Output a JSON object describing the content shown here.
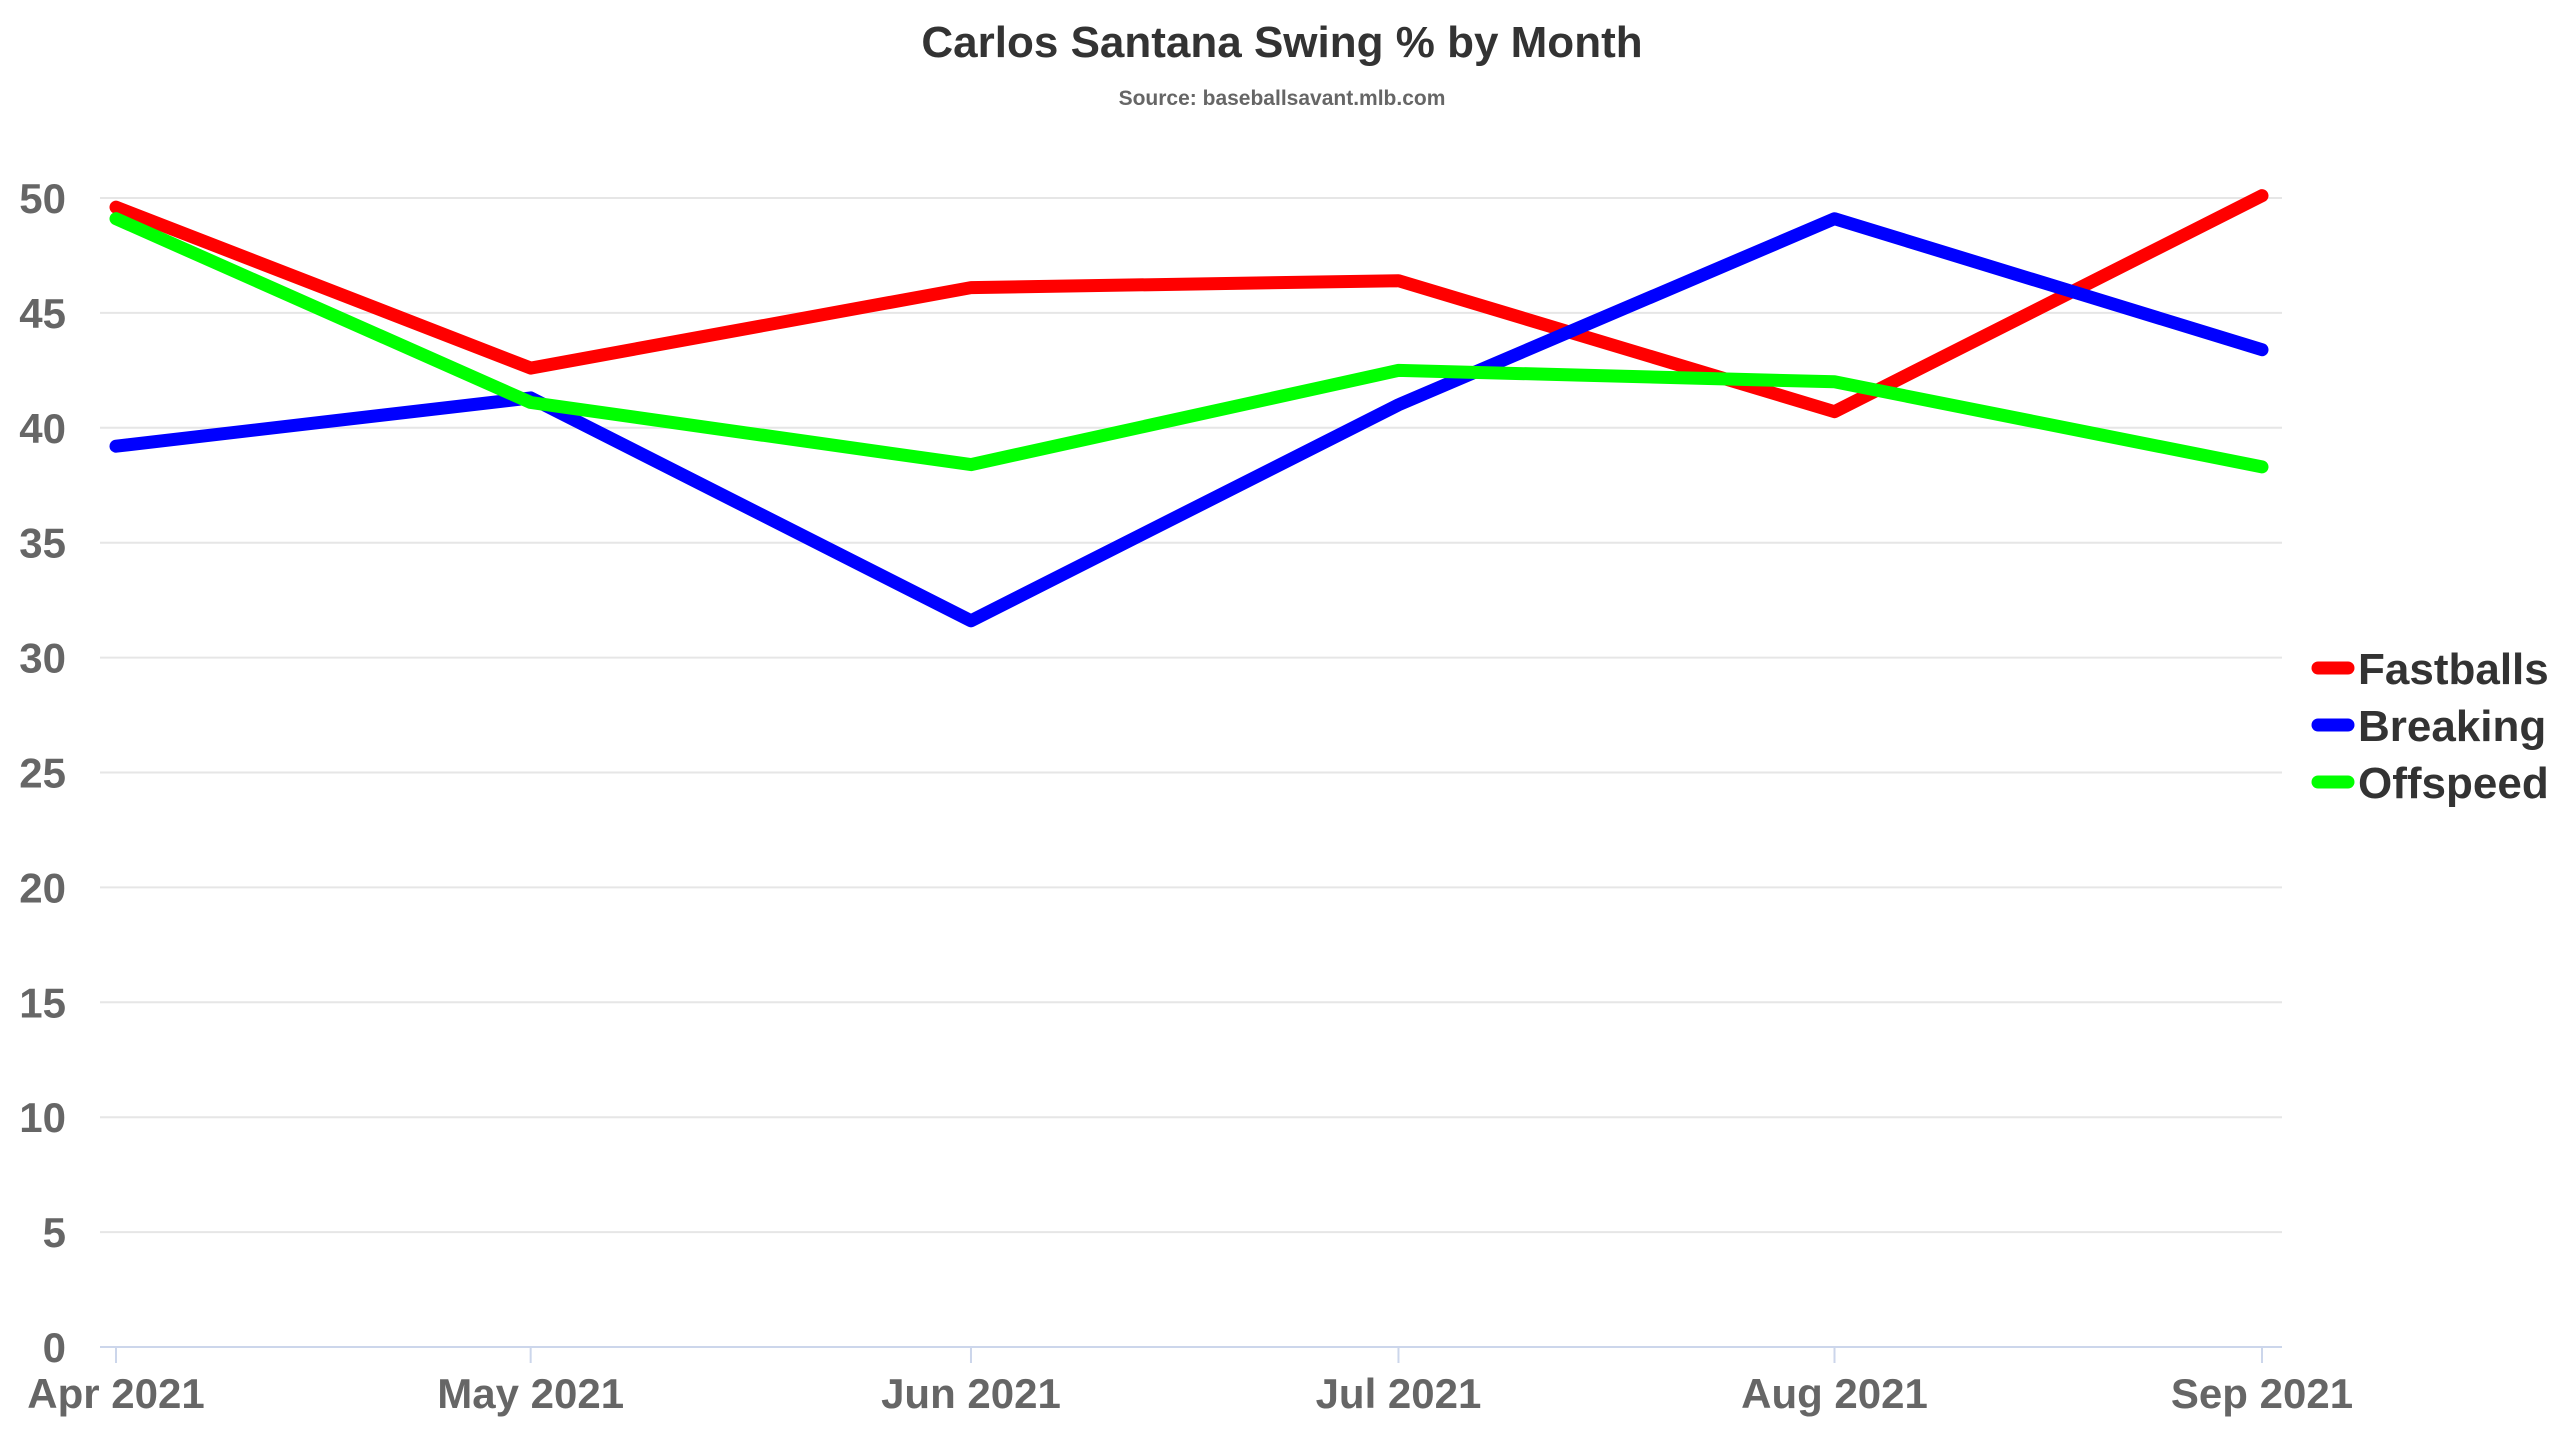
{
  "chart_data": {
    "type": "line",
    "title": "Carlos Santana Swing % by Month",
    "subtitle": "Source: baseballsavant.mlb.com",
    "xlabel": "",
    "ylabel": "",
    "categories": [
      "Apr 2021",
      "May 2021",
      "Jun 2021",
      "Jul 2021",
      "Aug 2021",
      "Sep 2021"
    ],
    "x_ticks": [
      {
        "label": "Apr 2021",
        "value": 0
      },
      {
        "label": "May 2021",
        "value": 0.97
      },
      {
        "label": "Jun 2021",
        "value": 2.0
      },
      {
        "label": "Jul 2021",
        "value": 3.0
      },
      {
        "label": "Aug 2021",
        "value": 4.02
      },
      {
        "label": "Sep 2021",
        "value": 5.02
      }
    ],
    "y_ticks": [
      0,
      5,
      10,
      15,
      20,
      25,
      30,
      35,
      40,
      45,
      50
    ],
    "ylim": [
      0,
      50
    ],
    "grid": true,
    "legend_position": "right",
    "series": [
      {
        "name": "Fastballs",
        "color": "#ff0000",
        "values": [
          49.6,
          42.6,
          46.1,
          46.4,
          40.7,
          50.1
        ]
      },
      {
        "name": "Breaking",
        "color": "#0000ff",
        "values": [
          39.2,
          41.3,
          31.6,
          41.0,
          49.1,
          43.4
        ]
      },
      {
        "name": "Offspeed",
        "color": "#00ff00",
        "values": [
          49.1,
          41.1,
          38.4,
          42.5,
          42.0,
          38.3
        ]
      }
    ]
  }
}
